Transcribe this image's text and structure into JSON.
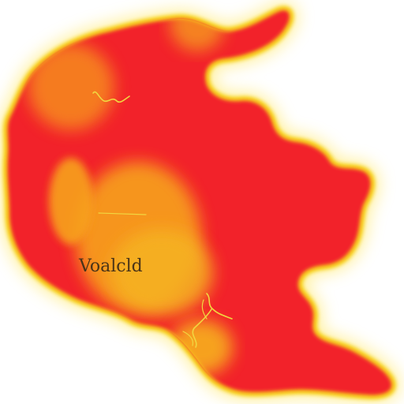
{
  "map": {
    "region_label": "Voalcld",
    "colors": {
      "background": "#ffffff",
      "outer_glow": "#ffe44d",
      "border_yellow": "#f7d21a",
      "land_red": "#f2222a",
      "land_red_dark": "#e5151f",
      "highlight_orange": "#f7a21a",
      "highlight_center": "#f5b323",
      "river_line": "#f1d640"
    }
  }
}
